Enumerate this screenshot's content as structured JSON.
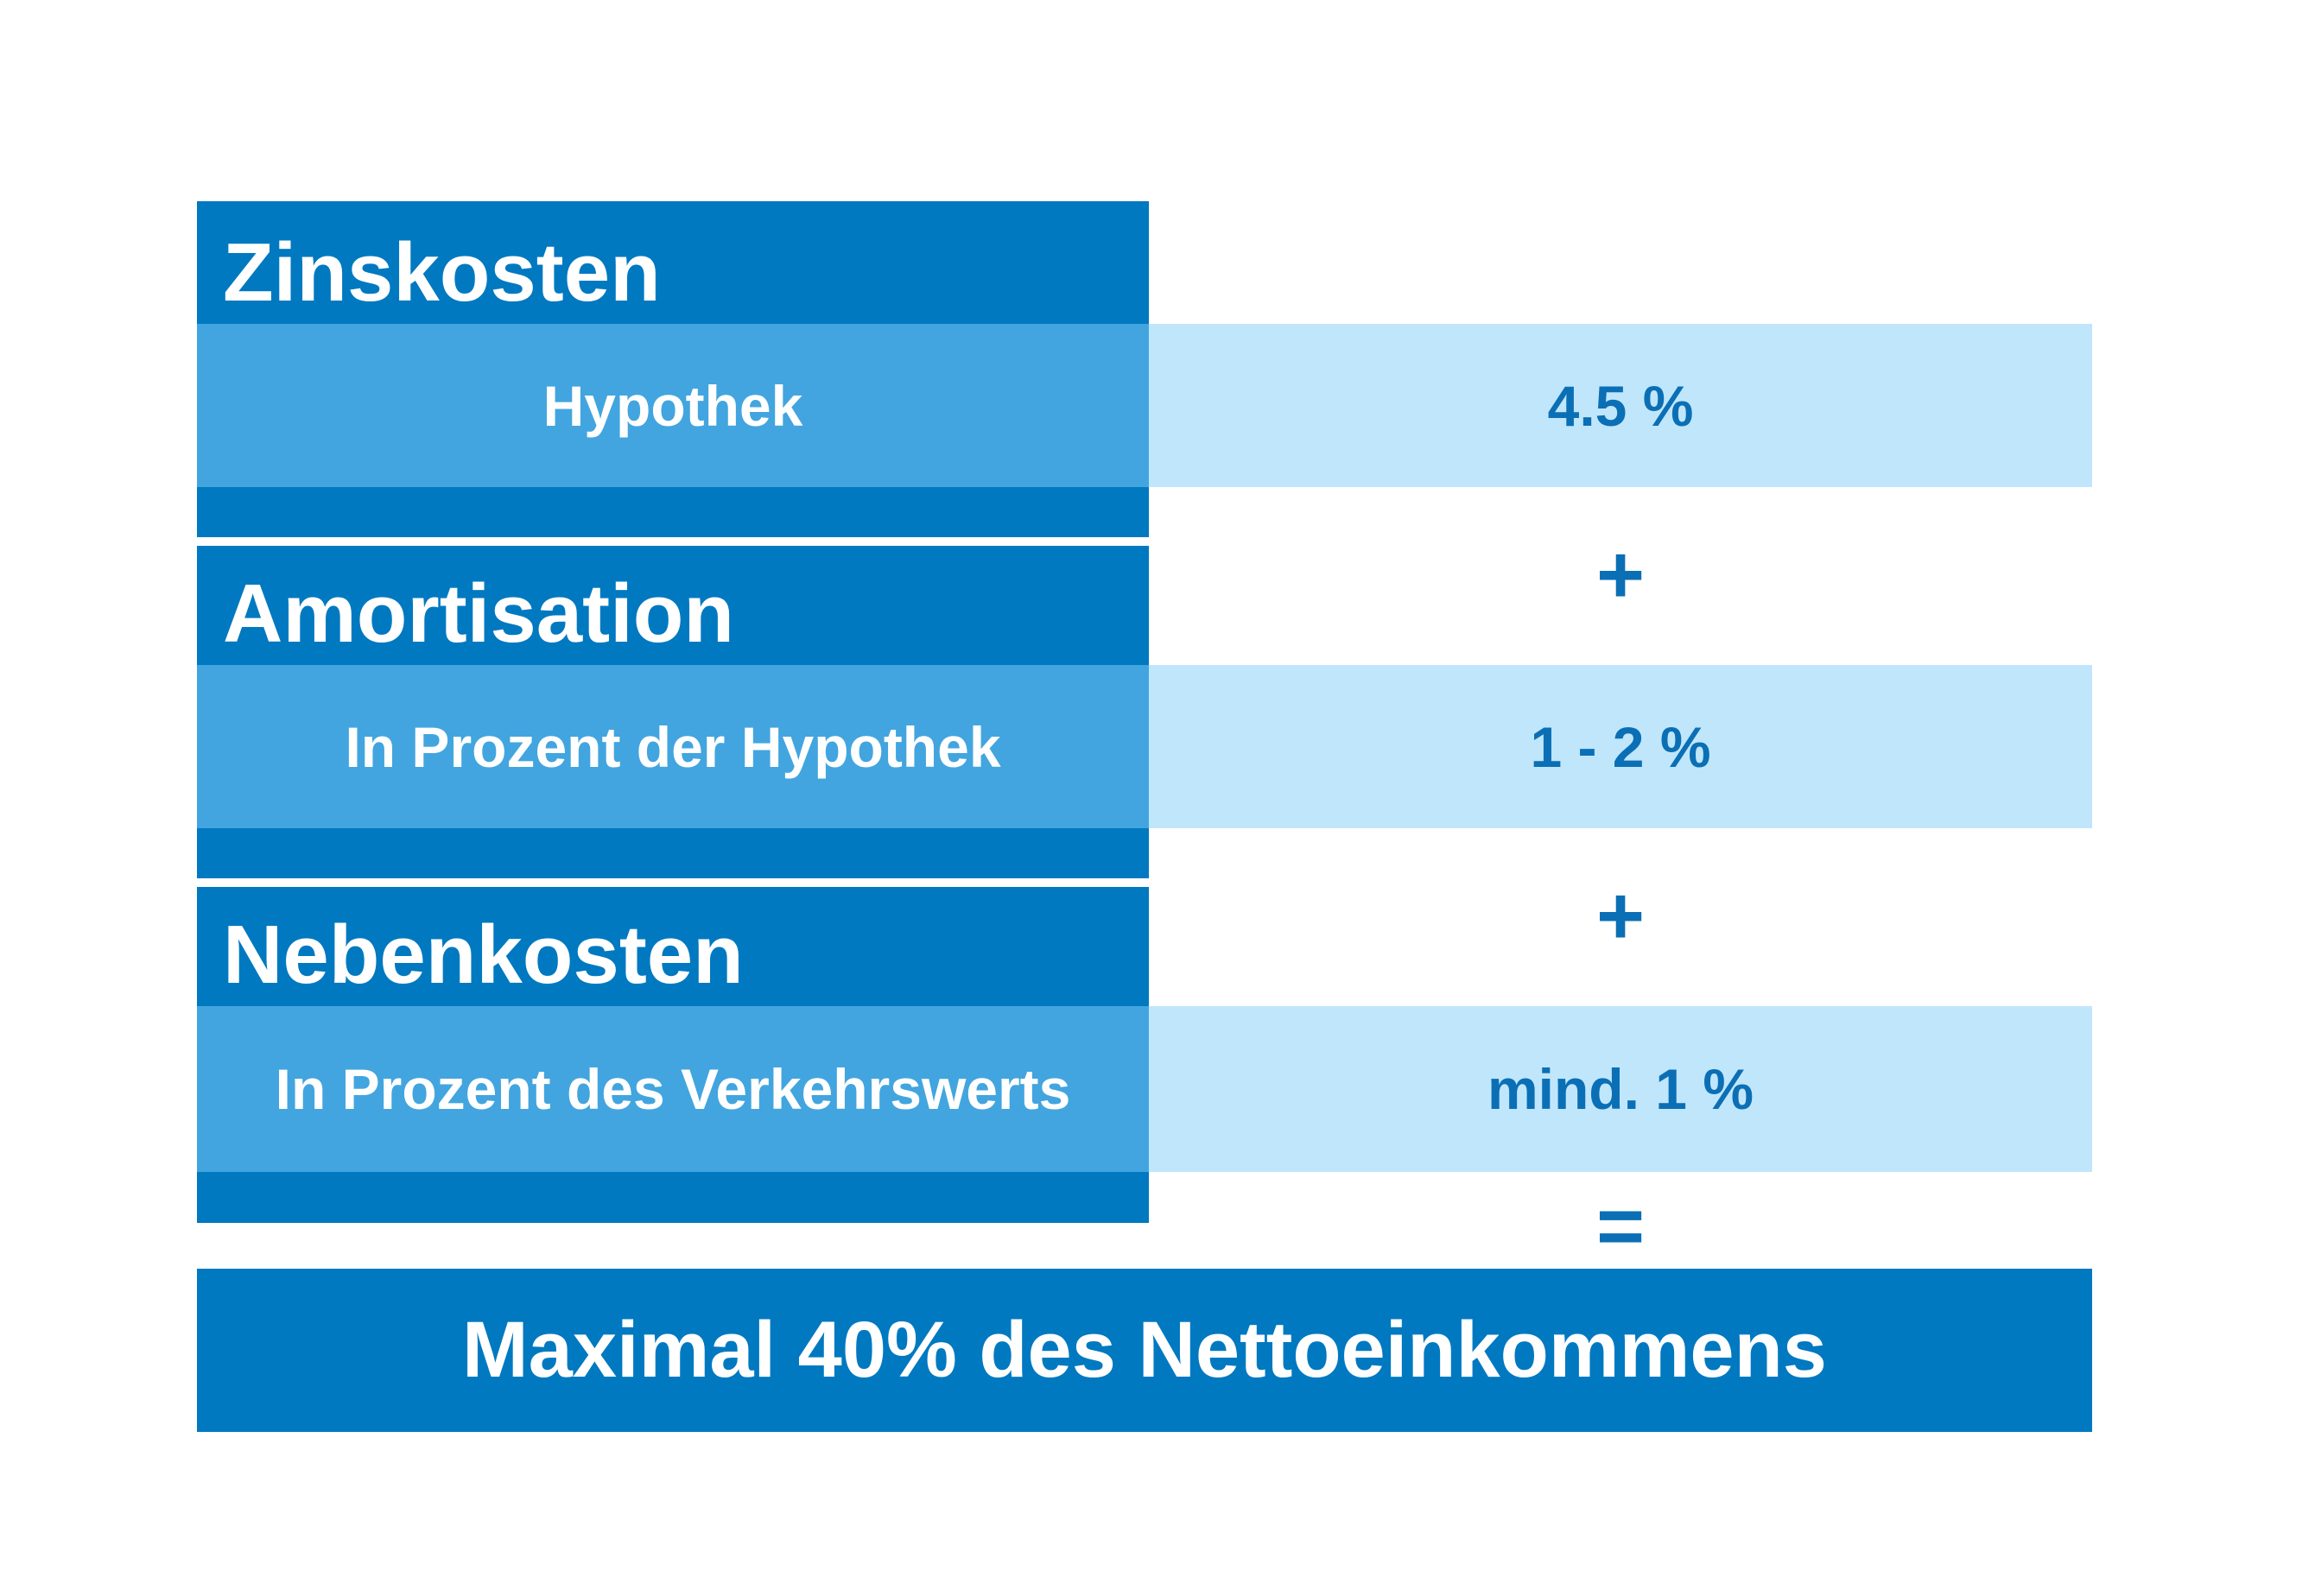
{
  "sections": [
    {
      "title": "Zinskosten",
      "label": "Hypothek",
      "value": "4.5 %"
    },
    {
      "title": "Amortisation",
      "label": "In Prozent der Hypothek",
      "value": "1 - 2 %"
    },
    {
      "title": "Nebenkosten",
      "label": "In Prozent des Verkehrswerts",
      "value": "mind. 1 %"
    }
  ],
  "operators": {
    "plus1": "+",
    "plus2": "+",
    "equals": "="
  },
  "result": "Maximal 40% des Nettoeinkommens",
  "colors": {
    "dark": "#0079c1",
    "mid": "#42a5df",
    "light": "#c0e6fb",
    "text": "#0b6fb5"
  }
}
